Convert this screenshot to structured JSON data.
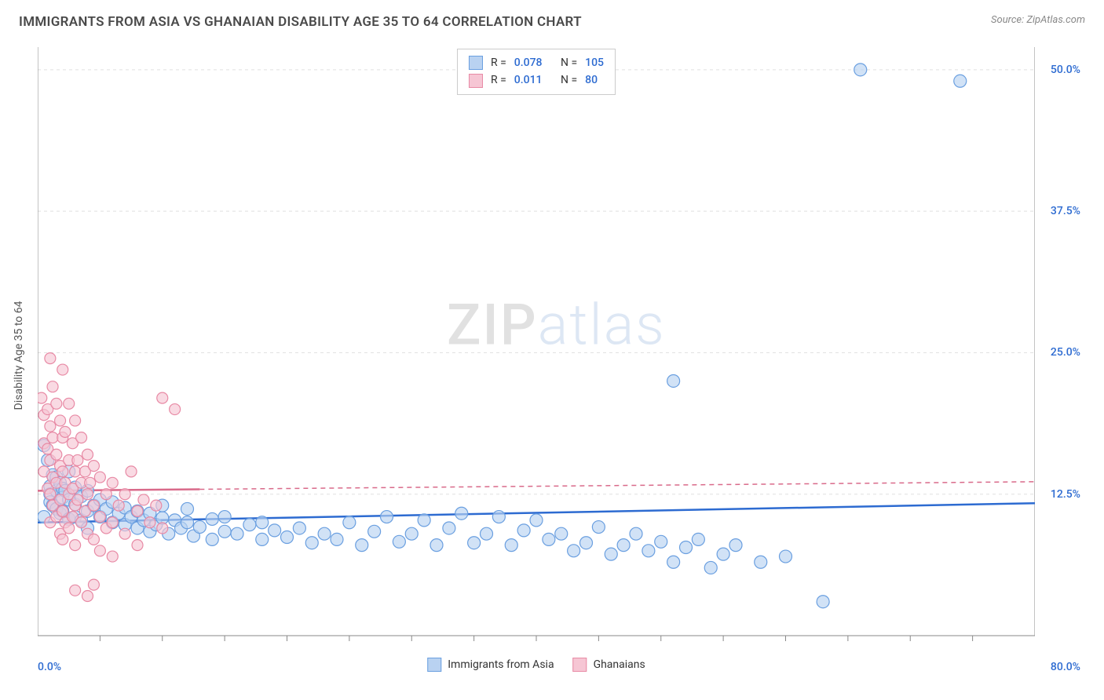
{
  "title": "IMMIGRANTS FROM ASIA VS GHANAIAN DISABILITY AGE 35 TO 64 CORRELATION CHART",
  "source_prefix": "Source: ",
  "source_name": "ZipAtlas.com",
  "y_axis_label": "Disability Age 35 to 64",
  "watermark_zip": "ZIP",
  "watermark_atlas": "atlas",
  "chart": {
    "type": "scatter",
    "xlim": [
      0,
      80
    ],
    "ylim": [
      0,
      52
    ],
    "x_origin_label": "0.0%",
    "x_max_label": "80.0%",
    "y_ticks": [
      {
        "v": 12.5,
        "label": "12.5%"
      },
      {
        "v": 25.0,
        "label": "25.0%"
      },
      {
        "v": 37.5,
        "label": "37.5%"
      },
      {
        "v": 50.0,
        "label": "50.0%"
      }
    ],
    "x_minor_ticks": [
      5,
      10,
      15,
      20,
      25,
      30,
      35,
      40,
      45,
      50,
      55,
      60,
      65,
      70,
      75
    ],
    "grid_color": "#e0e0e0",
    "grid_dash": "4,4",
    "axis_color": "#888888",
    "background": "#ffffff",
    "series": [
      {
        "id": "asia",
        "label": "Immigrants from Asia",
        "fill": "#b9d2f1",
        "stroke": "#6a9fe0",
        "line_color": "#2d6bd1",
        "line_dash_after": 80,
        "r_label": "R = ",
        "r_value": "0.078",
        "n_label": "N = ",
        "n_value": "105",
        "marker_r": 8,
        "trend": {
          "x1": 0,
          "y1": 10.0,
          "x2": 80,
          "y2": 11.7
        },
        "points": [
          [
            0.5,
            16.8
          ],
          [
            0.5,
            10.5
          ],
          [
            0.8,
            15.5
          ],
          [
            1,
            13.2
          ],
          [
            1,
            12.5
          ],
          [
            1,
            11.8
          ],
          [
            1.2,
            14.2
          ],
          [
            1.2,
            11.5
          ],
          [
            1.5,
            14.0
          ],
          [
            1.5,
            12.8
          ],
          [
            1.5,
            11.2
          ],
          [
            1.8,
            13.5
          ],
          [
            1.8,
            10.8
          ],
          [
            2,
            13.0
          ],
          [
            2,
            12.2
          ],
          [
            2,
            11.0
          ],
          [
            2.2,
            12.8
          ],
          [
            2.5,
            14.5
          ],
          [
            2.5,
            12.0
          ],
          [
            2.5,
            10.3
          ],
          [
            3,
            13.1
          ],
          [
            3,
            11.6
          ],
          [
            3,
            10.5
          ],
          [
            3.5,
            12.3
          ],
          [
            3.5,
            10.2
          ],
          [
            4,
            12.8
          ],
          [
            4,
            11.0
          ],
          [
            4,
            9.5
          ],
          [
            4.5,
            11.5
          ],
          [
            5,
            12.0
          ],
          [
            5,
            10.5
          ],
          [
            5.5,
            11.2
          ],
          [
            6,
            11.8
          ],
          [
            6,
            10.0
          ],
          [
            6.5,
            10.8
          ],
          [
            7,
            11.3
          ],
          [
            7,
            9.8
          ],
          [
            7.5,
            10.5
          ],
          [
            8,
            11.0
          ],
          [
            8,
            9.5
          ],
          [
            8.5,
            10.2
          ],
          [
            9,
            10.8
          ],
          [
            9,
            9.2
          ],
          [
            9.5,
            9.8
          ],
          [
            10,
            10.4
          ],
          [
            10,
            11.5
          ],
          [
            10.5,
            9.0
          ],
          [
            11,
            10.2
          ],
          [
            11.5,
            9.5
          ],
          [
            12,
            10.0
          ],
          [
            12,
            11.2
          ],
          [
            12.5,
            8.8
          ],
          [
            13,
            9.6
          ],
          [
            14,
            10.3
          ],
          [
            14,
            8.5
          ],
          [
            15,
            9.2
          ],
          [
            15,
            10.5
          ],
          [
            16,
            9.0
          ],
          [
            17,
            9.8
          ],
          [
            18,
            8.5
          ],
          [
            18,
            10.0
          ],
          [
            19,
            9.3
          ],
          [
            20,
            8.7
          ],
          [
            21,
            9.5
          ],
          [
            22,
            8.2
          ],
          [
            23,
            9.0
          ],
          [
            24,
            8.5
          ],
          [
            25,
            10.0
          ],
          [
            26,
            8.0
          ],
          [
            27,
            9.2
          ],
          [
            28,
            10.5
          ],
          [
            29,
            8.3
          ],
          [
            30,
            9.0
          ],
          [
            31,
            10.2
          ],
          [
            32,
            8.0
          ],
          [
            33,
            9.5
          ],
          [
            34,
            10.8
          ],
          [
            35,
            8.2
          ],
          [
            36,
            9.0
          ],
          [
            37,
            10.5
          ],
          [
            38,
            8.0
          ],
          [
            39,
            9.3
          ],
          [
            40,
            10.2
          ],
          [
            41,
            8.5
          ],
          [
            42,
            9.0
          ],
          [
            43,
            7.5
          ],
          [
            44,
            8.2
          ],
          [
            45,
            9.6
          ],
          [
            46,
            7.2
          ],
          [
            47,
            8.0
          ],
          [
            48,
            9.0
          ],
          [
            49,
            7.5
          ],
          [
            50,
            8.3
          ],
          [
            51,
            6.5
          ],
          [
            52,
            7.8
          ],
          [
            53,
            8.5
          ],
          [
            54,
            6.0
          ],
          [
            55,
            7.2
          ],
          [
            56,
            8.0
          ],
          [
            58,
            6.5
          ],
          [
            60,
            7.0
          ],
          [
            63,
            3.0
          ],
          [
            51,
            22.5
          ],
          [
            66,
            50.0
          ],
          [
            74,
            49.0
          ]
        ]
      },
      {
        "id": "ghana",
        "label": "Ghanaians",
        "fill": "#f6c6d4",
        "stroke": "#e88aa5",
        "line_color": "#d96a8a",
        "line_dash_after": 13,
        "r_label": "R = ",
        "r_value": "0.011",
        "n_label": "N = ",
        "n_value": "80",
        "marker_r": 7,
        "trend": {
          "x1": 0,
          "y1": 12.8,
          "x2": 80,
          "y2": 13.6
        },
        "points": [
          [
            0.3,
            21.0
          ],
          [
            0.5,
            19.5
          ],
          [
            0.5,
            17.0
          ],
          [
            0.5,
            14.5
          ],
          [
            0.8,
            20.0
          ],
          [
            0.8,
            16.5
          ],
          [
            0.8,
            13.0
          ],
          [
            1,
            24.5
          ],
          [
            1,
            18.5
          ],
          [
            1,
            15.5
          ],
          [
            1,
            12.5
          ],
          [
            1,
            10.0
          ],
          [
            1.2,
            22.0
          ],
          [
            1.2,
            17.5
          ],
          [
            1.2,
            14.0
          ],
          [
            1.2,
            11.5
          ],
          [
            1.5,
            20.5
          ],
          [
            1.5,
            16.0
          ],
          [
            1.5,
            13.5
          ],
          [
            1.5,
            10.5
          ],
          [
            1.8,
            19.0
          ],
          [
            1.8,
            15.0
          ],
          [
            1.8,
            12.0
          ],
          [
            1.8,
            9.0
          ],
          [
            2,
            23.5
          ],
          [
            2,
            17.5
          ],
          [
            2,
            14.5
          ],
          [
            2,
            11.0
          ],
          [
            2,
            8.5
          ],
          [
            2.2,
            18.0
          ],
          [
            2.2,
            13.5
          ],
          [
            2.2,
            10.0
          ],
          [
            2.5,
            20.5
          ],
          [
            2.5,
            15.5
          ],
          [
            2.5,
            12.5
          ],
          [
            2.5,
            9.5
          ],
          [
            2.8,
            17.0
          ],
          [
            2.8,
            13.0
          ],
          [
            2.8,
            10.5
          ],
          [
            3,
            19.0
          ],
          [
            3,
            14.5
          ],
          [
            3,
            11.5
          ],
          [
            3,
            8.0
          ],
          [
            3.2,
            15.5
          ],
          [
            3.2,
            12.0
          ],
          [
            3.5,
            17.5
          ],
          [
            3.5,
            13.5
          ],
          [
            3.5,
            10.0
          ],
          [
            3.8,
            14.5
          ],
          [
            3.8,
            11.0
          ],
          [
            4,
            16.0
          ],
          [
            4,
            12.5
          ],
          [
            4,
            9.0
          ],
          [
            4.2,
            13.5
          ],
          [
            4.5,
            15.0
          ],
          [
            4.5,
            11.5
          ],
          [
            4.5,
            8.5
          ],
          [
            5,
            14.0
          ],
          [
            5,
            10.5
          ],
          [
            5,
            7.5
          ],
          [
            5.5,
            12.5
          ],
          [
            5.5,
            9.5
          ],
          [
            6,
            13.5
          ],
          [
            6,
            10.0
          ],
          [
            6,
            7.0
          ],
          [
            6.5,
            11.5
          ],
          [
            7,
            12.5
          ],
          [
            7,
            9.0
          ],
          [
            7.5,
            14.5
          ],
          [
            8,
            11.0
          ],
          [
            8,
            8.0
          ],
          [
            8.5,
            12.0
          ],
          [
            9,
            10.0
          ],
          [
            9.5,
            11.5
          ],
          [
            10,
            9.5
          ],
          [
            10,
            21.0
          ],
          [
            11,
            20.0
          ],
          [
            3,
            4.0
          ],
          [
            4,
            3.5
          ],
          [
            4.5,
            4.5
          ]
        ]
      }
    ]
  }
}
